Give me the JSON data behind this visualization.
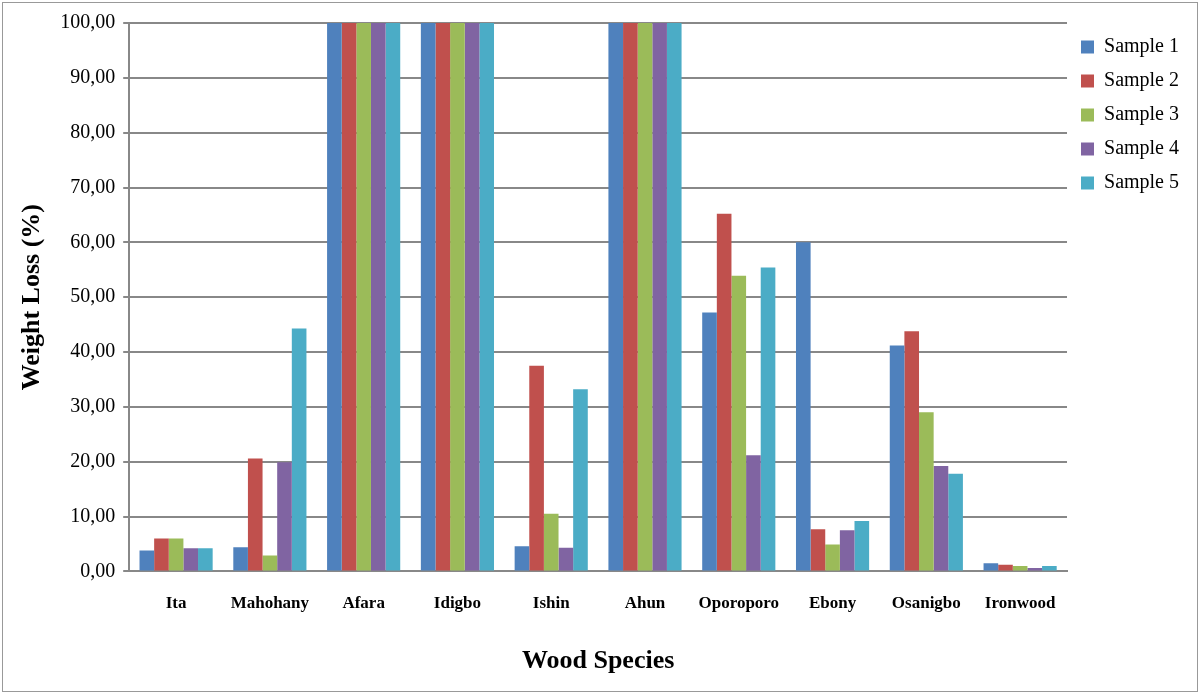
{
  "chart_data": {
    "type": "bar",
    "xlabel": "Wood Species",
    "ylabel": "Weight Loss (%)",
    "categories": [
      "Ita",
      "Mahohany",
      "Afara",
      "Idigbo",
      "Ishin",
      "Ahun",
      "Oporoporo",
      "Ebony",
      "Osanigbo",
      "Ironwood"
    ],
    "series": [
      {
        "name": "Sample 1",
        "color": "#4f81bd",
        "values": [
          3.8,
          4.4,
          100,
          100,
          4.6,
          100,
          47.2,
          60.0,
          41.2,
          1.5
        ]
      },
      {
        "name": "Sample 2",
        "color": "#c0504d",
        "values": [
          6.0,
          20.6,
          100,
          100,
          37.5,
          100,
          65.2,
          7.7,
          43.8,
          1.2
        ]
      },
      {
        "name": "Sample 3",
        "color": "#9bbb59",
        "values": [
          6.0,
          2.9,
          100,
          100,
          10.5,
          100,
          53.9,
          4.9,
          29.0,
          1.0
        ]
      },
      {
        "name": "Sample 4",
        "color": "#8064a2",
        "values": [
          4.2,
          19.9,
          100,
          100,
          4.3,
          100,
          21.2,
          7.5,
          19.2,
          0.6
        ]
      },
      {
        "name": "Sample 5",
        "color": "#4bacc6",
        "values": [
          4.2,
          44.3,
          100,
          100,
          33.2,
          100,
          55.4,
          9.2,
          17.8,
          1.0
        ]
      }
    ],
    "ylim": [
      0,
      100
    ],
    "yticks": [
      {
        "value": 0,
        "label": "0,00"
      },
      {
        "value": 10,
        "label": "10,00"
      },
      {
        "value": 20,
        "label": "20,00"
      },
      {
        "value": 30,
        "label": "30,00"
      },
      {
        "value": 40,
        "label": "40,00"
      },
      {
        "value": 50,
        "label": "50,00"
      },
      {
        "value": 60,
        "label": "60,00"
      },
      {
        "value": 70,
        "label": "70,00"
      },
      {
        "value": 80,
        "label": "80,00"
      },
      {
        "value": 90,
        "label": "90,00"
      },
      {
        "value": 100,
        "label": "100,00"
      }
    ],
    "grid": "y",
    "legend": "right"
  }
}
